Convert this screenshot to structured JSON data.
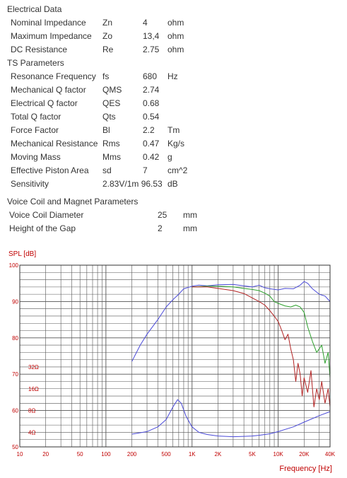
{
  "specs": {
    "electrical_title": "Electrical Data",
    "electrical_rows": [
      {
        "name": "Nominal Impedance",
        "symbol": "Zn",
        "value": "4",
        "unit": "ohm"
      },
      {
        "name": "Maximum Impedance",
        "symbol": "Zo",
        "value": "13,4",
        "unit": "ohm"
      },
      {
        "name": "DC Resistance",
        "symbol": "Re",
        "value": "2.75",
        "unit": "ohm"
      }
    ],
    "ts_title": "TS Parameters",
    "ts_rows": [
      {
        "name": "Resonance Frequency",
        "symbol": "fs",
        "value": "680",
        "unit": "Hz"
      },
      {
        "name": "Mechanical Q factor",
        "symbol": "QMS",
        "value": "2.74",
        "unit": ""
      },
      {
        "name": "Electrical Q factor",
        "symbol": "QES",
        "value": "0.68",
        "unit": ""
      },
      {
        "name": "Total Q factor",
        "symbol": "Qts",
        "value": "0.54",
        "unit": ""
      },
      {
        "name": "Force Factor",
        "symbol": "Bl",
        "value": "2.2",
        "unit": "Tm"
      },
      {
        "name": "Mechanical Resistance",
        "symbol": "Rms",
        "value": "0.47",
        "unit": "Kg/s"
      },
      {
        "name": "Moving Mass",
        "symbol": "Mms",
        "value": "0.42",
        "unit": "g"
      },
      {
        "name": "Effective Piston Area",
        "symbol": "sd",
        "value": "7",
        "unit": "cm^2"
      },
      {
        "name": "Sensitivity",
        "symbol": "",
        "value": "2.83V/1m 96.53",
        "unit": "dB"
      }
    ],
    "voice_coil_title": "Voice Coil and Magnet Parameters",
    "voice_coil_rows": [
      {
        "name": "Voice Coil Diameter",
        "value": "25",
        "unit": "mm"
      },
      {
        "name": "Height of the Gap",
        "value": "2",
        "unit": "mm"
      }
    ]
  },
  "chart_data": {
    "type": "line",
    "ylabel": "SPL [dB]",
    "xlabel": "Frequency [Hz]",
    "xscale": "log",
    "xlim": [
      10,
      40000
    ],
    "ylim": [
      50,
      100
    ],
    "grid": true,
    "x_ticks": [
      10,
      20,
      50,
      100,
      200,
      500,
      1000,
      2000,
      5000,
      10000,
      20000,
      40000
    ],
    "x_tick_labels": [
      "10",
      "20",
      "50",
      "100",
      "200",
      "500",
      "1K",
      "2K",
      "5K",
      "10K",
      "20K",
      "40K"
    ],
    "y_ticks": [
      50,
      60,
      70,
      80,
      90,
      100
    ],
    "y_tick_labels": [
      "50",
      "60",
      "70",
      "80",
      "90",
      "100"
    ],
    "impedance_scale": [
      {
        "label": "4Ω",
        "y": 54
      },
      {
        "label": "8Ω",
        "y": 60
      },
      {
        "label": "16Ω",
        "y": 66
      },
      {
        "label": "32Ω",
        "y": 72
      }
    ],
    "colors": {
      "spl_blue": "#4a4ad8",
      "spl_green": "#2ca02c",
      "spl_red": "#b22222",
      "impedance": "#4a4ad8",
      "labels": "#c00000",
      "grid": "#555555"
    },
    "series": [
      {
        "color_key": "spl_blue",
        "points": [
          [
            200,
            73.5
          ],
          [
            250,
            78
          ],
          [
            300,
            81
          ],
          [
            400,
            85
          ],
          [
            500,
            88.5
          ],
          [
            600,
            90.5
          ],
          [
            700,
            92
          ],
          [
            800,
            93.5
          ],
          [
            1000,
            94.2
          ],
          [
            1200,
            94.5
          ],
          [
            1500,
            94.3
          ],
          [
            2000,
            94.6
          ],
          [
            3000,
            94.7
          ],
          [
            4000,
            94.3
          ],
          [
            5000,
            94
          ],
          [
            6000,
            94.5
          ],
          [
            7000,
            93.8
          ],
          [
            8000,
            93.5
          ],
          [
            10000,
            93.2
          ],
          [
            12000,
            93.6
          ],
          [
            15000,
            93.5
          ],
          [
            18000,
            94.5
          ],
          [
            20000,
            95.5
          ],
          [
            22000,
            95
          ],
          [
            25000,
            93.5
          ],
          [
            30000,
            92
          ],
          [
            35000,
            91.5
          ],
          [
            40000,
            90
          ]
        ]
      },
      {
        "color_key": "spl_green",
        "points": [
          [
            1000,
            94
          ],
          [
            1500,
            94.2
          ],
          [
            2000,
            94.2
          ],
          [
            3000,
            94
          ],
          [
            4000,
            93.6
          ],
          [
            5000,
            93.3
          ],
          [
            6000,
            93
          ],
          [
            7000,
            92.3
          ],
          [
            8000,
            91.5
          ],
          [
            9000,
            90
          ],
          [
            10000,
            89.5
          ],
          [
            12000,
            88.8
          ],
          [
            14000,
            88.5
          ],
          [
            16000,
            89
          ],
          [
            18000,
            88.5
          ],
          [
            20000,
            87
          ],
          [
            22000,
            83
          ],
          [
            25000,
            79
          ],
          [
            28000,
            76
          ],
          [
            30000,
            77
          ],
          [
            32000,
            78
          ],
          [
            35000,
            73
          ],
          [
            38000,
            76
          ],
          [
            40000,
            69
          ]
        ]
      },
      {
        "color_key": "spl_red",
        "points": [
          [
            1000,
            94
          ],
          [
            1500,
            94
          ],
          [
            2000,
            93.6
          ],
          [
            3000,
            93
          ],
          [
            4000,
            92.2
          ],
          [
            5000,
            91
          ],
          [
            6000,
            90
          ],
          [
            7000,
            89
          ],
          [
            8000,
            87.5
          ],
          [
            9000,
            86
          ],
          [
            10000,
            84.5
          ],
          [
            11000,
            82
          ],
          [
            12000,
            79.5
          ],
          [
            13000,
            81
          ],
          [
            14000,
            77
          ],
          [
            15000,
            74
          ],
          [
            16000,
            68
          ],
          [
            17000,
            73
          ],
          [
            18000,
            70
          ],
          [
            19000,
            64
          ],
          [
            20000,
            69
          ],
          [
            22000,
            65
          ],
          [
            24000,
            71
          ],
          [
            26000,
            61
          ],
          [
            28000,
            66
          ],
          [
            30000,
            63
          ],
          [
            32000,
            68
          ],
          [
            35000,
            62
          ],
          [
            38000,
            66
          ],
          [
            40000,
            61
          ]
        ]
      },
      {
        "color_key": "impedance",
        "points": [
          [
            200,
            53.5
          ],
          [
            300,
            54.2
          ],
          [
            400,
            55.5
          ],
          [
            500,
            57.5
          ],
          [
            600,
            61
          ],
          [
            680,
            63
          ],
          [
            750,
            62
          ],
          [
            850,
            58.5
          ],
          [
            1000,
            55.5
          ],
          [
            1200,
            54
          ],
          [
            1500,
            53.4
          ],
          [
            2000,
            53
          ],
          [
            3000,
            52.8
          ],
          [
            4000,
            52.9
          ],
          [
            5000,
            53
          ],
          [
            6000,
            53.2
          ],
          [
            8000,
            53.6
          ],
          [
            10000,
            54.2
          ],
          [
            15000,
            55.5
          ],
          [
            20000,
            56.8
          ],
          [
            30000,
            58.6
          ],
          [
            40000,
            59.7
          ]
        ]
      }
    ]
  }
}
